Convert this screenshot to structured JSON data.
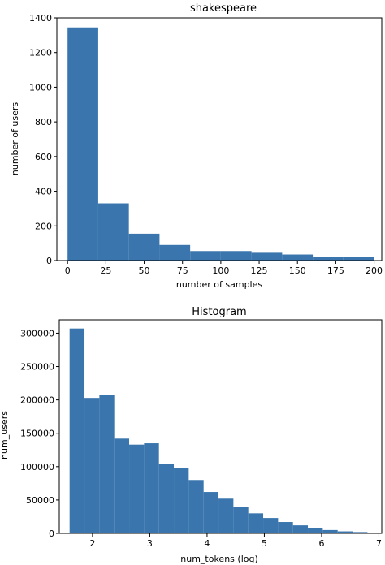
{
  "colors": {
    "bar": "#3a76ad",
    "axis": "#000000",
    "background": "#ffffff"
  },
  "chart_data": [
    {
      "type": "bar",
      "title": "shakespeare",
      "xlabel": "number of samples",
      "ylabel": "number of users",
      "xlim": [
        -7,
        205
      ],
      "ylim": [
        0,
        1400
      ],
      "xticks": [
        0,
        25,
        50,
        75,
        100,
        125,
        150,
        175,
        200
      ],
      "yticks": [
        0,
        200,
        400,
        600,
        800,
        1000,
        1200,
        1400
      ],
      "bin_edges": [
        0,
        20,
        40,
        60,
        80,
        100,
        120,
        140,
        160,
        180,
        200
      ],
      "values": [
        1345,
        330,
        155,
        90,
        55,
        55,
        45,
        35,
        20,
        20
      ],
      "grid": false,
      "legend": "none"
    },
    {
      "type": "bar",
      "title": "Histogram",
      "xlabel": "num_tokens (log)",
      "ylabel": "num_users",
      "xlim": [
        1.42,
        7.05
      ],
      "ylim": [
        0,
        320000
      ],
      "xticks": [
        2,
        3,
        4,
        5,
        6,
        7
      ],
      "yticks": [
        0,
        50000,
        100000,
        150000,
        200000,
        250000,
        300000
      ],
      "bin_edges": [
        1.6,
        1.86,
        2.12,
        2.38,
        2.64,
        2.9,
        3.16,
        3.42,
        3.68,
        3.94,
        4.2,
        4.46,
        4.72,
        4.98,
        5.24,
        5.5,
        5.76,
        6.02,
        6.28,
        6.54,
        6.8
      ],
      "values": [
        307000,
        203000,
        207000,
        142000,
        133000,
        135000,
        104000,
        98000,
        80000,
        62000,
        52000,
        39000,
        30000,
        23000,
        17000,
        12000,
        8000,
        5000,
        3000,
        2000
      ],
      "grid": false,
      "legend": "none"
    }
  ]
}
